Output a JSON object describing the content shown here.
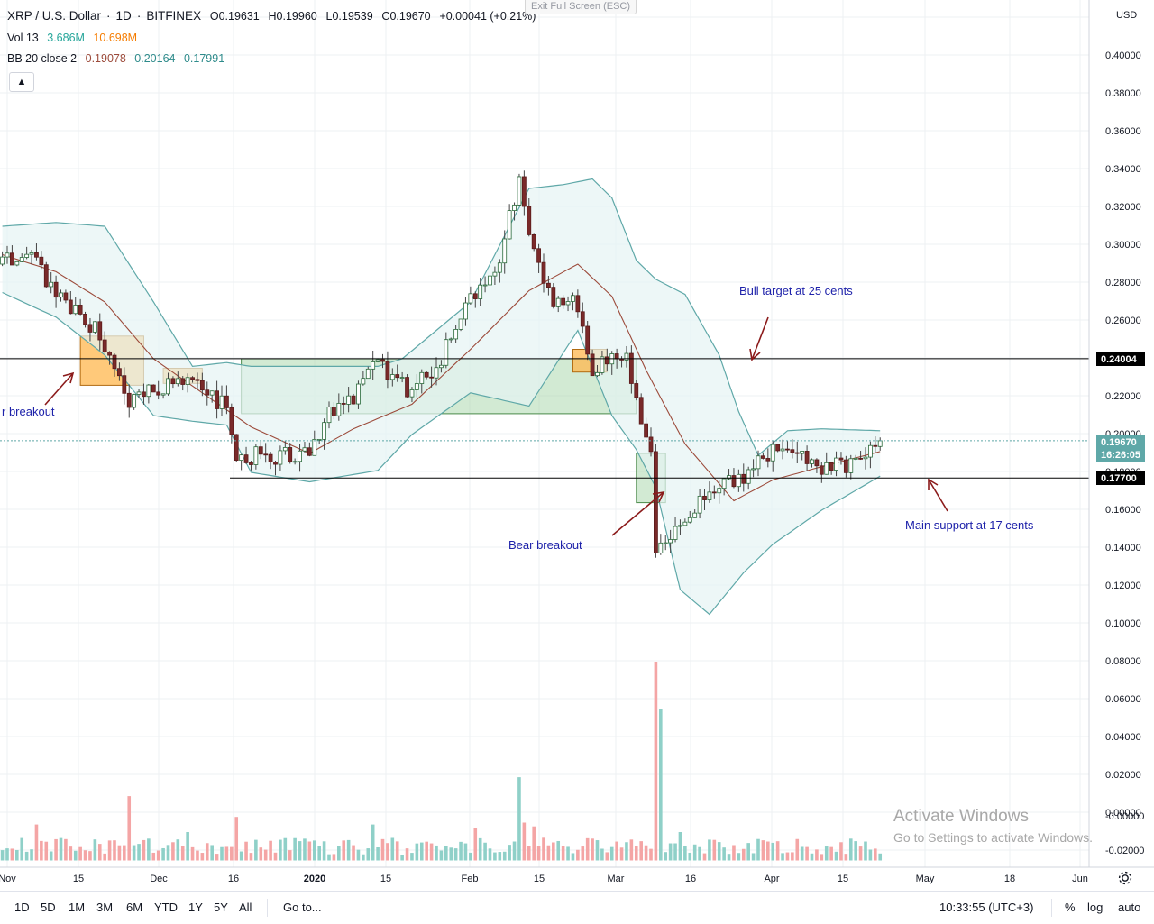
{
  "header": {
    "symbol": "XRP / U.S. Dollar",
    "interval": "1D",
    "exchange": "BITFINEX",
    "open": "O0.19631",
    "high": "H0.19960",
    "low": "L0.19539",
    "close": "C0.19670",
    "change": "+0.00041 (+0.21%)",
    "exit_fullscreen": "Exit Full Screen (ESC)"
  },
  "indicators": {
    "vol_label": "Vol 13",
    "vol_value_1": "3.686M",
    "vol_value_2": "10.698M",
    "bb_label": "BB 20 close 2",
    "bb_basis": "0.19078",
    "bb_upper": "0.20164",
    "bb_lower": "0.17991",
    "collapse_icon": "chevron-up-icon"
  },
  "axis": {
    "currency": "USD",
    "price_tag": "0.19670",
    "countdown": "16:26:05",
    "resistance_tag": "0.24004",
    "support_tag": "0.17700"
  },
  "annotations": {
    "bull_target": "Bull target at 25 cents",
    "bear_breakout": "Bear breakout",
    "left_breakout": "r breakout",
    "main_support": "Main support at 17 cents"
  },
  "colors": {
    "up": "#26a69a",
    "down": "#ef5350",
    "bb_band": "#5fa8a8",
    "bb_basis": "#9c4a3a",
    "green_box": "#a5d6a7",
    "orange_box": "#ffb74d",
    "annotation": "#1e22aa",
    "arrow": "#8b1a1a"
  },
  "toolbar": {
    "ranges": [
      "1D",
      "5D",
      "1M",
      "3M",
      "6M",
      "YTD",
      "1Y",
      "5Y",
      "All"
    ],
    "goto": "Go to...",
    "time": "10:33:55 (UTC+3)",
    "percent": "%",
    "log": "log",
    "auto": "auto",
    "settings_icon": "gear-icon"
  },
  "watermark": {
    "line1": "Activate Windows",
    "line2": "Go to Settings to activate Windows."
  },
  "chart_data": {
    "type": "candlestick",
    "series_name": "XRP / U.S. Dollar",
    "x_tick_labels": [
      "Nov",
      "15",
      "Dec",
      "16",
      "2020",
      "15",
      "Feb",
      "15",
      "Mar",
      "16",
      "Apr",
      "15",
      "May",
      "18",
      "Jun"
    ],
    "y_tick_labels": [
      "0.40000",
      "0.38000",
      "0.36000",
      "0.34000",
      "0.32000",
      "0.30000",
      "0.28000",
      "0.26000",
      "0.22000",
      "0.20000",
      "0.18000",
      "0.16000",
      "0.14000",
      "0.12000",
      "0.10000",
      "0.08000",
      "0.06000",
      "0.04000",
      "0.02000",
      "0.00000",
      "-0.00000",
      "-0.02000"
    ],
    "y_range": [
      -0.025,
      0.41
    ],
    "x_range": [
      "2019-10-31",
      "2020-06-07"
    ],
    "horizontal_lines": [
      0.24004,
      0.177
    ],
    "anchors": [
      [
        "2019-10-30",
        0.29
      ],
      [
        "2019-11-05",
        0.3
      ],
      [
        "2019-11-08",
        0.278
      ],
      [
        "2019-11-14",
        0.265
      ],
      [
        "2019-11-18",
        0.255
      ],
      [
        "2019-11-22",
        0.232
      ],
      [
        "2019-11-25",
        0.218
      ],
      [
        "2019-12-01",
        0.224
      ],
      [
        "2019-12-05",
        0.23
      ],
      [
        "2019-12-10",
        0.223
      ],
      [
        "2019-12-15",
        0.215
      ],
      [
        "2019-12-17",
        0.19
      ],
      [
        "2019-12-25",
        0.187
      ],
      [
        "2020-01-01",
        0.193
      ],
      [
        "2020-01-05",
        0.211
      ],
      [
        "2020-01-10",
        0.219
      ],
      [
        "2020-01-15",
        0.237
      ],
      [
        "2020-01-22",
        0.222
      ],
      [
        "2020-01-28",
        0.24
      ],
      [
        "2020-02-03",
        0.275
      ],
      [
        "2020-02-08",
        0.282
      ],
      [
        "2020-02-13",
        0.335
      ],
      [
        "2020-02-15",
        0.305
      ],
      [
        "2020-02-20",
        0.27
      ],
      [
        "2020-02-24",
        0.275
      ],
      [
        "2020-02-28",
        0.236
      ],
      [
        "2020-03-03",
        0.238
      ],
      [
        "2020-03-06",
        0.242
      ],
      [
        "2020-03-09",
        0.21
      ],
      [
        "2020-03-11",
        0.195
      ],
      [
        "2020-03-12",
        0.14
      ],
      [
        "2020-03-16",
        0.15
      ],
      [
        "2020-03-20",
        0.16
      ],
      [
        "2020-03-25",
        0.175
      ],
      [
        "2020-03-31",
        0.178
      ],
      [
        "2020-04-06",
        0.196
      ],
      [
        "2020-04-10",
        0.188
      ],
      [
        "2020-04-15",
        0.182
      ],
      [
        "2020-04-20",
        0.183
      ],
      [
        "2020-04-25",
        0.194
      ],
      [
        "2020-04-27",
        0.1967
      ]
    ],
    "bb_upper_anchors": [
      [
        "2019-10-30",
        0.31
      ],
      [
        "2019-11-10",
        0.312
      ],
      [
        "2019-11-20",
        0.31
      ],
      [
        "2019-11-30",
        0.27
      ],
      [
        "2019-12-08",
        0.236
      ],
      [
        "2019-12-15",
        0.238
      ],
      [
        "2019-12-20",
        0.236
      ],
      [
        "2020-01-02",
        0.236
      ],
      [
        "2020-01-15",
        0.236
      ],
      [
        "2020-01-20",
        0.24
      ],
      [
        "2020-02-03",
        0.27
      ],
      [
        "2020-02-15",
        0.33
      ],
      [
        "2020-02-22",
        0.332
      ],
      [
        "2020-02-28",
        0.335
      ],
      [
        "2020-03-03",
        0.325
      ],
      [
        "2020-03-08",
        0.292
      ],
      [
        "2020-03-12",
        0.282
      ],
      [
        "2020-03-18",
        0.274
      ],
      [
        "2020-03-25",
        0.242
      ],
      [
        "2020-03-29",
        0.212
      ],
      [
        "2020-04-02",
        0.189
      ],
      [
        "2020-04-08",
        0.202
      ],
      [
        "2020-04-15",
        0.203
      ],
      [
        "2020-04-27",
        0.202
      ]
    ],
    "bb_lower_anchors": [
      [
        "2019-10-30",
        0.275
      ],
      [
        "2019-11-10",
        0.262
      ],
      [
        "2019-11-20",
        0.242
      ],
      [
        "2019-11-30",
        0.21
      ],
      [
        "2019-12-08",
        0.207
      ],
      [
        "2019-12-15",
        0.205
      ],
      [
        "2019-12-20",
        0.18
      ],
      [
        "2020-01-01",
        0.175
      ],
      [
        "2020-01-08",
        0.178
      ],
      [
        "2020-01-15",
        0.181
      ],
      [
        "2020-01-22",
        0.2
      ],
      [
        "2020-02-03",
        0.222
      ],
      [
        "2020-02-15",
        0.215
      ],
      [
        "2020-02-25",
        0.255
      ],
      [
        "2020-03-03",
        0.21
      ],
      [
        "2020-03-08",
        0.192
      ],
      [
        "2020-03-12",
        0.172
      ],
      [
        "2020-03-17",
        0.118
      ],
      [
        "2020-03-23",
        0.105
      ],
      [
        "2020-03-30",
        0.127
      ],
      [
        "2020-04-05",
        0.142
      ],
      [
        "2020-04-15",
        0.16
      ],
      [
        "2020-04-27",
        0.178
      ]
    ],
    "bb_basis_anchors": [
      [
        "2019-10-30",
        0.295
      ],
      [
        "2019-11-10",
        0.286
      ],
      [
        "2019-11-20",
        0.27
      ],
      [
        "2019-11-30",
        0.24
      ],
      [
        "2019-12-10",
        0.222
      ],
      [
        "2019-12-20",
        0.204
      ],
      [
        "2020-01-01",
        0.19
      ],
      [
        "2020-01-10",
        0.203
      ],
      [
        "2020-01-22",
        0.216
      ],
      [
        "2020-02-03",
        0.245
      ],
      [
        "2020-02-15",
        0.276
      ],
      [
        "2020-02-25",
        0.29
      ],
      [
        "2020-03-03",
        0.273
      ],
      [
        "2020-03-10",
        0.234
      ],
      [
        "2020-03-18",
        0.195
      ],
      [
        "2020-03-28",
        0.165
      ],
      [
        "2020-04-05",
        0.176
      ],
      [
        "2020-04-15",
        0.183
      ],
      [
        "2020-04-27",
        0.191
      ]
    ],
    "volume_spikes": [
      [
        "2019-11-06",
        0.019
      ],
      [
        "2019-11-23",
        0.008
      ],
      [
        "2019-11-25",
        0.034
      ],
      [
        "2019-12-07",
        0.015
      ],
      [
        "2019-12-17",
        0.023
      ],
      [
        "2020-01-01",
        0.01
      ],
      [
        "2020-01-14",
        0.019
      ],
      [
        "2020-02-04",
        0.017
      ],
      [
        "2020-02-12",
        0.01
      ],
      [
        "2020-02-13",
        0.044
      ],
      [
        "2020-02-14",
        0.02
      ],
      [
        "2020-02-16",
        0.018
      ],
      [
        "2020-03-12",
        0.105
      ],
      [
        "2020-03-13",
        0.08
      ],
      [
        "2020-03-17",
        0.015
      ]
    ],
    "zones": [
      {
        "kind": "green",
        "from": "2019-12-18",
        "to": "2020-03-08",
        "low": 0.211,
        "high": 0.24
      },
      {
        "kind": "orange",
        "from": "2019-11-15",
        "to": "2019-11-28",
        "low": 0.226,
        "high": 0.252
      },
      {
        "kind": "orange",
        "from": "2019-12-02",
        "to": "2019-12-10",
        "low": 0.227,
        "high": 0.235
      },
      {
        "kind": "orange",
        "from": "2020-02-24",
        "to": "2020-03-02",
        "low": 0.233,
        "high": 0.245
      },
      {
        "kind": "green",
        "from": "2020-03-08",
        "to": "2020-03-14",
        "low": 0.164,
        "high": 0.19
      }
    ]
  }
}
